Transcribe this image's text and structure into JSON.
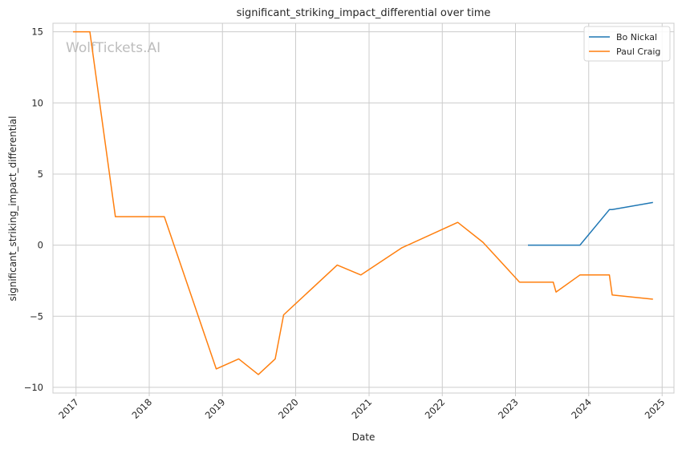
{
  "watermark": "WolfTickets.AI",
  "chart_data": {
    "type": "line",
    "title": "significant_striking_impact_differential over time",
    "xlabel": "Date",
    "ylabel": "significant_striking_impact_differential",
    "x_ticks": [
      "2017",
      "2018",
      "2019",
      "2020",
      "2021",
      "2022",
      "2023",
      "2024",
      "2025"
    ],
    "y_ticks": [
      -10,
      -5,
      0,
      5,
      10,
      15
    ],
    "xlim": [
      "2016-09-08",
      "2025-03-01"
    ],
    "ylim": [
      -10.4,
      15.6
    ],
    "grid": true,
    "legend": "top-right",
    "series": [
      {
        "name": "Bo Nickal",
        "color": "#1f77b4",
        "points": [
          [
            "2023-03-04",
            0.0
          ],
          [
            "2023-11-18",
            0.0
          ],
          [
            "2024-04-13",
            2.5
          ],
          [
            "2024-04-27",
            2.5
          ],
          [
            "2024-11-16",
            3.0
          ]
        ]
      },
      {
        "name": "Paul Craig",
        "color": "#ff7f0e",
        "points": [
          [
            "2016-12-17",
            15.0
          ],
          [
            "2017-03-11",
            15.0
          ],
          [
            "2017-07-16",
            2.0
          ],
          [
            "2018-03-17",
            2.0
          ],
          [
            "2018-12-01",
            -8.7
          ],
          [
            "2019-03-23",
            -8.0
          ],
          [
            "2019-06-29",
            -9.1
          ],
          [
            "2019-09-21",
            -8.0
          ],
          [
            "2019-11-02",
            -4.9
          ],
          [
            "2020-07-26",
            -1.4
          ],
          [
            "2020-11-21",
            -2.1
          ],
          [
            "2021-06-12",
            -0.2
          ],
          [
            "2022-03-19",
            1.6
          ],
          [
            "2022-07-23",
            0.2
          ],
          [
            "2023-01-21",
            -2.6
          ],
          [
            "2023-07-08",
            -2.6
          ],
          [
            "2023-07-22",
            -3.3
          ],
          [
            "2023-11-18",
            -2.1
          ],
          [
            "2024-04-13",
            -2.1
          ],
          [
            "2024-04-27",
            -3.5
          ],
          [
            "2024-11-16",
            -3.8
          ]
        ]
      }
    ]
  }
}
